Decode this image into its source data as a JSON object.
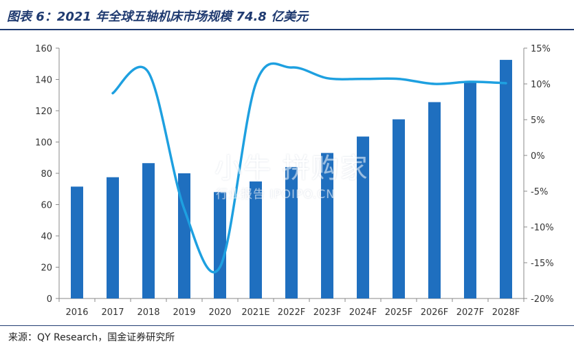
{
  "header": {
    "title": "图表 6：2021 年全球五轴机床市场规模 74.8 亿美元"
  },
  "footer": {
    "source": "来源：QY Research，国金证券研究所"
  },
  "watermark": {
    "main": "小牛 拼购家",
    "sub": "行业报告 IPOIPO.CN"
  },
  "chart_data": {
    "type": "bar",
    "categories": [
      "2016",
      "2017",
      "2018",
      "2019",
      "2020",
      "2021E",
      "2022F",
      "2023F",
      "2024F",
      "2025F",
      "2026F",
      "2027F",
      "2028F"
    ],
    "series": [
      {
        "type": "bar",
        "axis": "left",
        "color": "#1f6fbf",
        "values": [
          71.5,
          77.5,
          86.5,
          80,
          68,
          74.8,
          84,
          93,
          103.5,
          114.5,
          125.5,
          138.5,
          152.5
        ]
      },
      {
        "type": "line",
        "axis": "right",
        "color": "#1ea0e0",
        "values": [
          null,
          8.7,
          11.6,
          -7.5,
          -15.6,
          10.0,
          12.3,
          10.8,
          10.7,
          10.7,
          10.0,
          10.3,
          10.1
        ]
      }
    ],
    "ylim": [
      0,
      160
    ],
    "yticks": [
      0,
      20,
      40,
      60,
      80,
      100,
      120,
      140,
      160
    ],
    "y2lim": [
      -20,
      15
    ],
    "y2ticks": [
      -20,
      -15,
      -10,
      -5,
      0,
      5,
      10,
      15
    ],
    "y2ticklabels": [
      "-20%",
      "-15%",
      "-10%",
      "-5%",
      "0%",
      "5%",
      "10%",
      "15%"
    ],
    "grid": false,
    "legend": "none"
  }
}
